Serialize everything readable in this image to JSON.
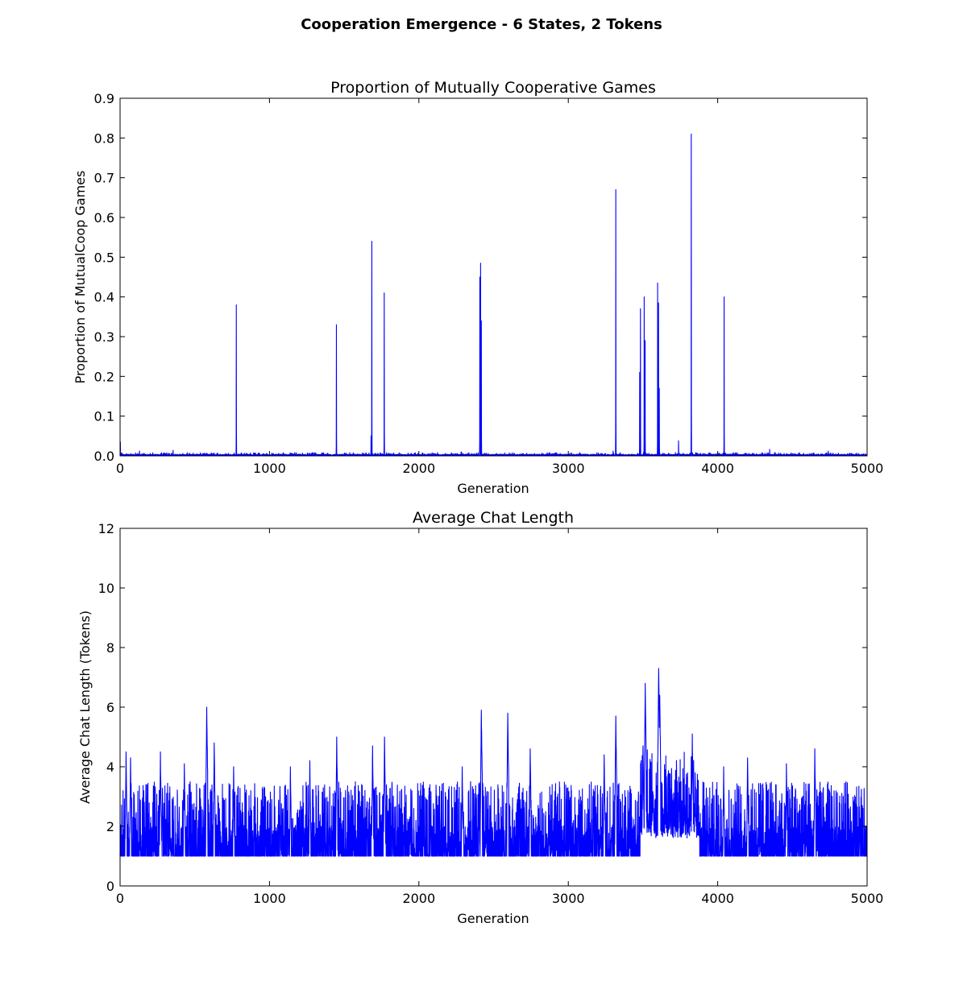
{
  "figure": {
    "suptitle": "Cooperation Emergence - 6 States, 2 Tokens",
    "series_color": "#0000ff"
  },
  "chart_data": [
    {
      "type": "line",
      "title": "Proportion of Mutually Cooperative Games",
      "xlabel": "Generation",
      "ylabel": "Proportion of MutualCoop Games",
      "xlim": [
        0,
        5000
      ],
      "ylim": [
        0,
        0.9
      ],
      "xticks": [
        0,
        1000,
        2000,
        3000,
        4000,
        5000
      ],
      "yticks": [
        0.0,
        0.1,
        0.2,
        0.3,
        0.4,
        0.5,
        0.6,
        0.7,
        0.8,
        0.9
      ],
      "ytick_labels": [
        "0.0",
        "0.1",
        "0.2",
        "0.3",
        "0.4",
        "0.5",
        "0.6",
        "0.7",
        "0.8",
        "0.9"
      ],
      "grid": false,
      "baseline": 0.002,
      "peaks": [
        {
          "x": 2,
          "y": 0.035
        },
        {
          "x": 130,
          "y": 0.012
        },
        {
          "x": 355,
          "y": 0.014
        },
        {
          "x": 778,
          "y": 0.38
        },
        {
          "x": 1448,
          "y": 0.33
        },
        {
          "x": 1680,
          "y": 0.05
        },
        {
          "x": 1685,
          "y": 0.54
        },
        {
          "x": 1768,
          "y": 0.41
        },
        {
          "x": 2283,
          "y": 0.01
        },
        {
          "x": 2408,
          "y": 0.45
        },
        {
          "x": 2413,
          "y": 0.485
        },
        {
          "x": 2418,
          "y": 0.34
        },
        {
          "x": 3300,
          "y": 0.012
        },
        {
          "x": 3318,
          "y": 0.67
        },
        {
          "x": 3478,
          "y": 0.21
        },
        {
          "x": 3483,
          "y": 0.37
        },
        {
          "x": 3508,
          "y": 0.4
        },
        {
          "x": 3514,
          "y": 0.29
        },
        {
          "x": 3598,
          "y": 0.435
        },
        {
          "x": 3604,
          "y": 0.385
        },
        {
          "x": 3609,
          "y": 0.17
        },
        {
          "x": 3738,
          "y": 0.038
        },
        {
          "x": 3823,
          "y": 0.81
        },
        {
          "x": 4043,
          "y": 0.4
        },
        {
          "x": 4348,
          "y": 0.016
        },
        {
          "x": 4740,
          "y": 0.012
        }
      ]
    },
    {
      "type": "line",
      "title": "Average Chat Length",
      "xlabel": "Generation",
      "ylabel": "Average Chat Length (Tokens)",
      "xlim": [
        0,
        5000
      ],
      "ylim": [
        0,
        12
      ],
      "xticks": [
        0,
        1000,
        2000,
        3000,
        4000,
        5000
      ],
      "yticks": [
        0,
        2,
        4,
        6,
        8,
        10,
        12
      ],
      "ytick_labels": [
        "0",
        "2",
        "4",
        "6",
        "8",
        "10",
        "12"
      ],
      "grid": false,
      "noise_range": [
        1.0,
        3.3
      ],
      "peaks": [
        {
          "x": 40,
          "y": 4.5
        },
        {
          "x": 70,
          "y": 4.3
        },
        {
          "x": 270,
          "y": 4.5
        },
        {
          "x": 430,
          "y": 4.1
        },
        {
          "x": 580,
          "y": 6.0
        },
        {
          "x": 630,
          "y": 4.8
        },
        {
          "x": 760,
          "y": 4.0
        },
        {
          "x": 1140,
          "y": 4.0
        },
        {
          "x": 1270,
          "y": 4.2
        },
        {
          "x": 1450,
          "y": 5.0
        },
        {
          "x": 1690,
          "y": 4.7
        },
        {
          "x": 1770,
          "y": 5.0
        },
        {
          "x": 2290,
          "y": 4.0
        },
        {
          "x": 2418,
          "y": 5.9
        },
        {
          "x": 2595,
          "y": 5.8
        },
        {
          "x": 2745,
          "y": 4.6
        },
        {
          "x": 3240,
          "y": 4.4
        },
        {
          "x": 3318,
          "y": 5.7
        },
        {
          "x": 3500,
          "y": 4.7
        },
        {
          "x": 3515,
          "y": 6.8
        },
        {
          "x": 3605,
          "y": 7.3
        },
        {
          "x": 3612,
          "y": 6.4
        },
        {
          "x": 3830,
          "y": 5.1
        },
        {
          "x": 4040,
          "y": 4.0
        },
        {
          "x": 4200,
          "y": 4.3
        },
        {
          "x": 4460,
          "y": 4.1
        },
        {
          "x": 4650,
          "y": 4.6
        }
      ]
    }
  ]
}
